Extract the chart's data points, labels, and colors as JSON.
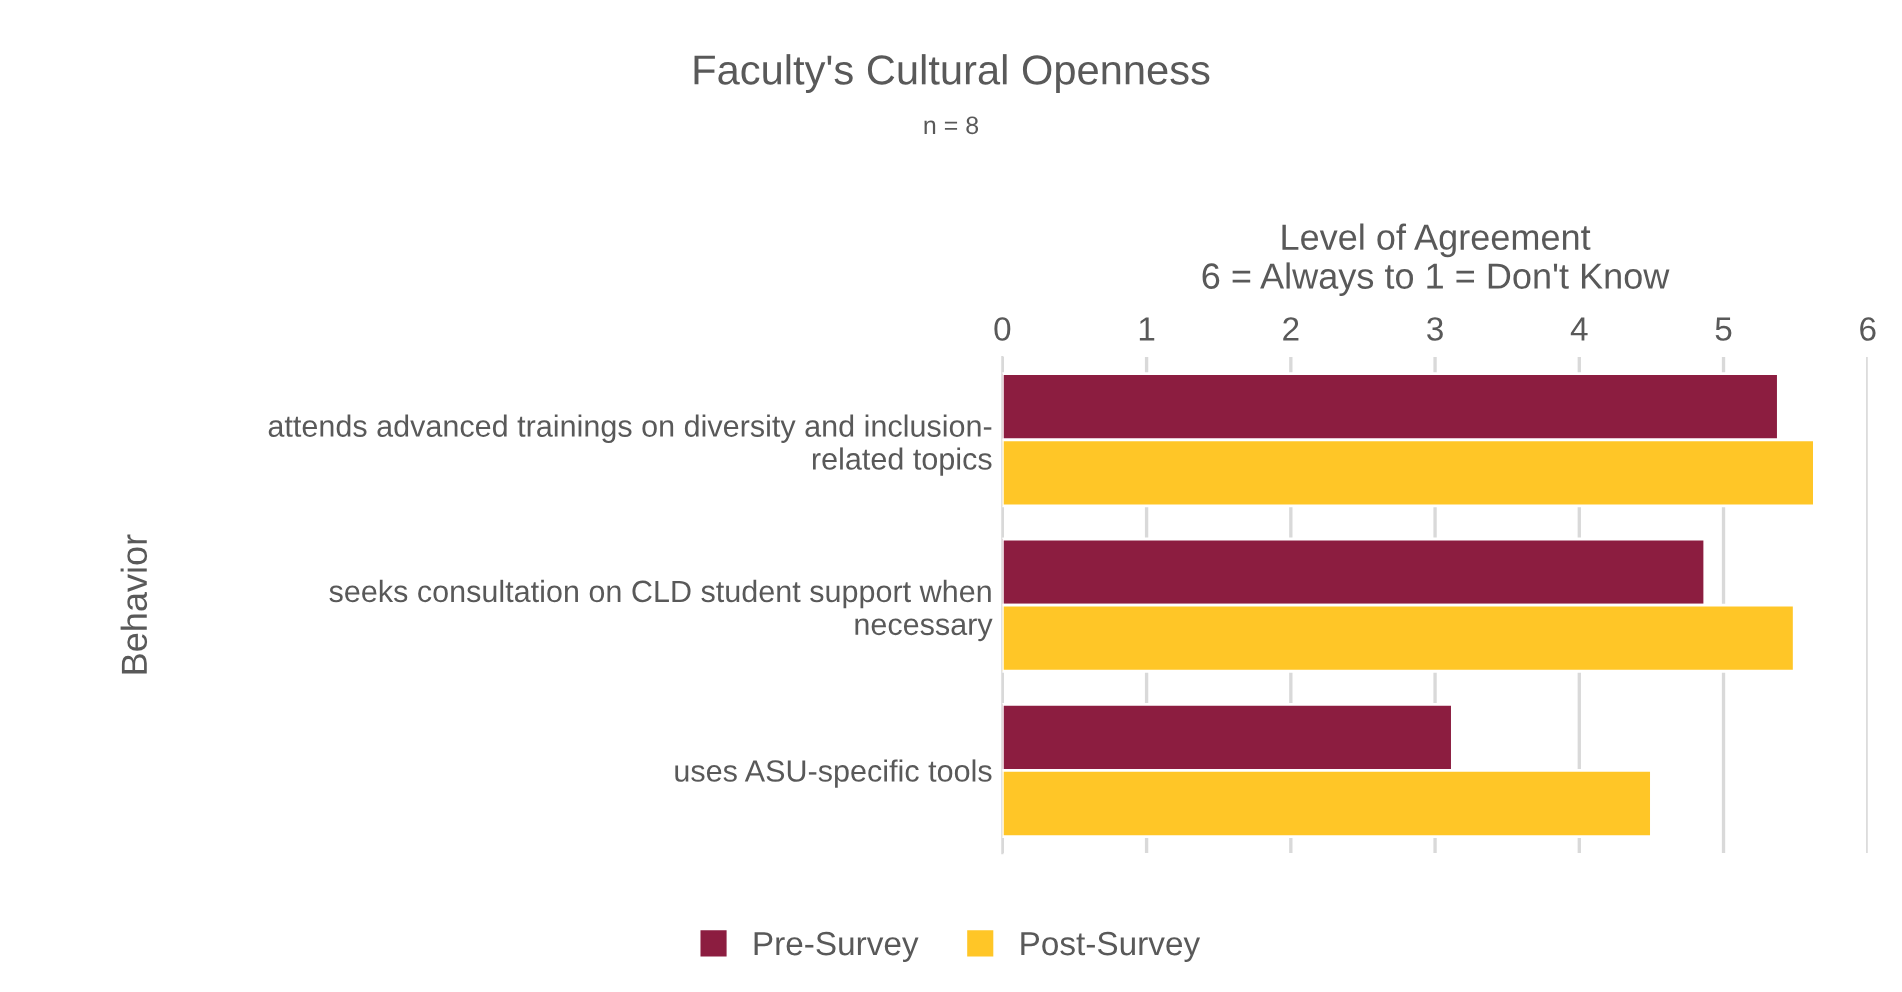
{
  "chart_data": {
    "type": "bar",
    "orientation": "horizontal",
    "title": "Faculty's Cultural Openness",
    "subtitle": "n = 8",
    "xlabel": "Level of Agreement\n6 = Always to 1 = Don't Know",
    "ylabel": "Behavior",
    "categories": [
      "attends advanced trainings on diversity and inclusion-\nrelated topics",
      "seeks consultation on CLD student support when\nnecessary",
      "uses ASU-specific tools"
    ],
    "series": [
      {
        "name": "Pre-Survey",
        "color": "#8c1d40",
        "values": [
          5.38,
          4.87,
          3.12
        ]
      },
      {
        "name": "Post-Survey",
        "color": "#ffc627",
        "values": [
          5.63,
          5.49,
          4.5
        ]
      }
    ],
    "xlim": [
      0,
      6
    ],
    "xticks": [
      0,
      1,
      2,
      3,
      4,
      5,
      6
    ],
    "grid": "x",
    "legend": "bottom"
  }
}
